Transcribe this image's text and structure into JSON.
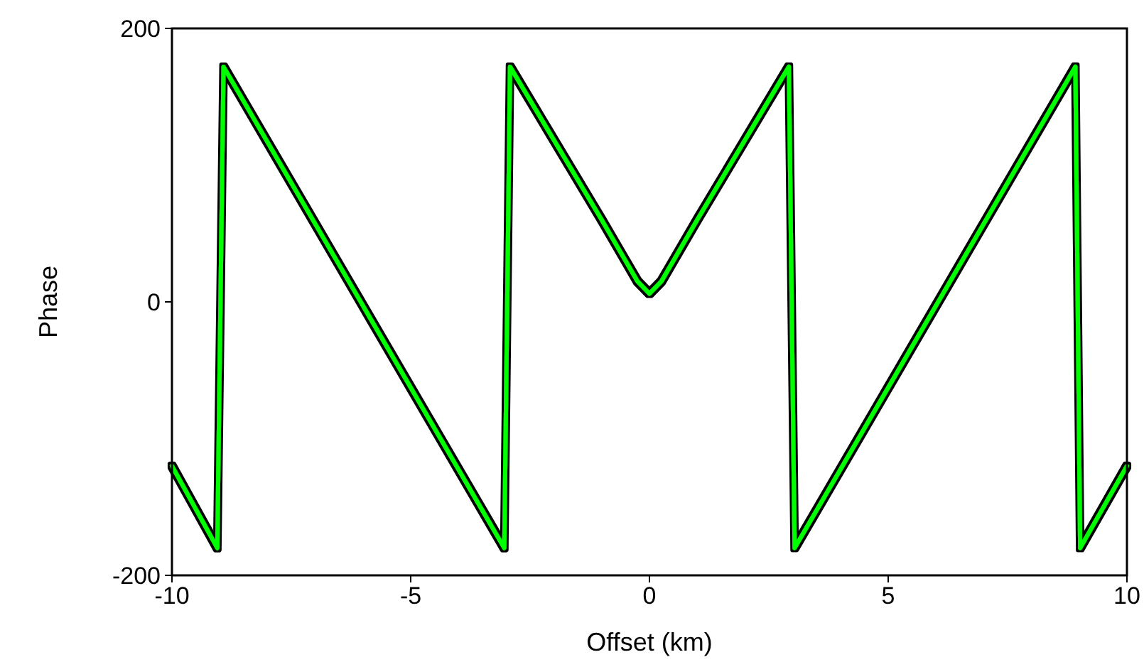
{
  "chart_data": {
    "type": "line",
    "xlabel": "Offset (km)",
    "ylabel": "Phase",
    "x": [
      -10,
      -9.05,
      -8.92,
      -3.04,
      -2.92,
      -1,
      -0.5,
      -0.25,
      0,
      0.25,
      0.5,
      1,
      2.92,
      3.04,
      8.92,
      9.02,
      10
    ],
    "series": [
      {
        "color": "#00ff00",
        "values": [
          -120,
          -180,
          172,
          -180,
          172,
          60,
          30,
          15,
          6,
          15,
          30,
          60,
          172,
          -180,
          172,
          -180,
          -120
        ]
      }
    ],
    "xlim": [
      -10,
      10
    ],
    "ylim": [
      -200,
      200
    ],
    "xticks": [
      -10,
      -5,
      0,
      5,
      10
    ],
    "yticks": [
      -200,
      0,
      200
    ],
    "grid": false,
    "marker": "none",
    "line_style": "solid"
  }
}
